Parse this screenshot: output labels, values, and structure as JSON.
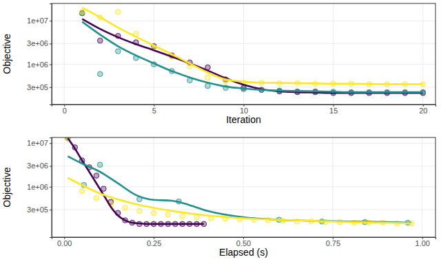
{
  "chart_data": [
    {
      "type": "line",
      "x_label": "Iteration",
      "y_label": "Objective",
      "log": "y",
      "grid": true,
      "xlim": [
        -0.7,
        20.7
      ],
      "xticks": [
        0,
        5,
        10,
        15,
        20
      ],
      "ylim": [
        120000,
        25000000
      ],
      "yticks": [
        {
          "value": 300000,
          "label": "3e+05"
        },
        {
          "value": 1000000,
          "label": "1e+06"
        },
        {
          "value": 3000000,
          "label": "3e+06"
        },
        {
          "value": 10000000,
          "label": "1e+07"
        }
      ],
      "series": [
        {
          "type": "scatter",
          "marker": "circle",
          "color": "#440154",
          "x": [
            1,
            2,
            3,
            4,
            5,
            6,
            7,
            8,
            9,
            10,
            11,
            12,
            13,
            14,
            15,
            16,
            17,
            18,
            19,
            20
          ],
          "values": [
            15000000.0,
            3500000.0,
            4500000.0,
            3200000.0,
            2600000.0,
            1600000.0,
            1100000.0,
            850000.0,
            450000.0,
            290000.0,
            260000.0,
            240000.0,
            230000.0,
            230000.0,
            220000.0,
            220000.0,
            220000.0,
            220000.0,
            220000.0,
            220000.0
          ]
        },
        {
          "type": "scatter",
          "marker": "circle",
          "color": "#21908C",
          "x": [
            1,
            2,
            3,
            4,
            5,
            6,
            7,
            8,
            9,
            10,
            11,
            12,
            13,
            14,
            15,
            16,
            17,
            18,
            19,
            20
          ],
          "values": [
            15000000.0,
            600000.0,
            2000000.0,
            1400000.0,
            1000000.0,
            700000.0,
            430000.0,
            320000.0,
            290000.0,
            270000.0,
            260000.0,
            250000.0,
            240000.0,
            240000.0,
            235000.0,
            230000.0,
            230000.0,
            230000.0,
            230000.0,
            230000.0
          ]
        },
        {
          "type": "scatter",
          "marker": "circle",
          "color": "#FDE725",
          "x": [
            1,
            2,
            3,
            4,
            5,
            6,
            7,
            8,
            9,
            10,
            11,
            12,
            13,
            14,
            15,
            16,
            17,
            18,
            19,
            20
          ],
          "values": [
            16000000.0,
            12000000.0,
            16000000.0,
            5000000.0,
            2400000.0,
            1500000.0,
            900000.0,
            500000.0,
            400000.0,
            380000.0,
            380000.0,
            370000.0,
            370000.0,
            360000.0,
            360000.0,
            360000.0,
            350000.0,
            350000.0,
            350000.0,
            350000.0
          ]
        },
        {
          "type": "line",
          "line_style": "solid",
          "color": "#440154",
          "x": [
            1,
            2,
            3,
            4,
            5,
            6,
            7,
            8,
            9,
            10,
            11,
            12,
            13,
            14,
            15,
            16,
            17,
            18,
            19,
            20
          ],
          "values": [
            11000000.0,
            6500000.0,
            4200000.0,
            2900000.0,
            2100000.0,
            1500000.0,
            1050000.0,
            720000.0,
            480000.0,
            340000.0,
            270000.0,
            240000.0,
            230000.0,
            225000.0,
            220000.0,
            220000.0,
            220000.0,
            220000.0,
            220000.0,
            220000.0
          ]
        },
        {
          "type": "line",
          "line_style": "solid",
          "color": "#21908C",
          "x": [
            1,
            2,
            3,
            4,
            5,
            6,
            7,
            8,
            9,
            10,
            11,
            12,
            13,
            14,
            15,
            16,
            17,
            18,
            19,
            20
          ],
          "values": [
            9500000.0,
            4800000.0,
            2600000.0,
            1600000.0,
            1050000.0,
            700000.0,
            500000.0,
            380000.0,
            310000.0,
            280000.0,
            260000.0,
            250000.0,
            245000.0,
            240000.0,
            235000.0,
            230000.0,
            230000.0,
            230000.0,
            230000.0,
            230000.0
          ]
        },
        {
          "type": "line",
          "line_style": "solid",
          "color": "#FDE725",
          "x": [
            1,
            2,
            3,
            4,
            5,
            6,
            7,
            8,
            9,
            10,
            11,
            12,
            13,
            14,
            15,
            16,
            17,
            18,
            19,
            20
          ],
          "values": [
            20000000.0,
            12000000.0,
            7000000.0,
            4300000.0,
            2700000.0,
            1700000.0,
            1050000.0,
            650000.0,
            450000.0,
            400000.0,
            380000.0,
            375000.0,
            370000.0,
            365000.0,
            360000.0,
            360000.0,
            355000.0,
            350000.0,
            350000.0,
            350000.0
          ]
        }
      ]
    },
    {
      "type": "line",
      "x_label": "Elapsed (s)",
      "y_label": "Objective",
      "log": "y",
      "grid": true,
      "xlim": [
        -0.035,
        1.037
      ],
      "xticks": [
        {
          "value": 0,
          "label": "0.00"
        },
        0.25,
        {
          "value": 0.5,
          "label": "0.50"
        },
        0.75,
        {
          "value": 1,
          "label": "1.00"
        }
      ],
      "ylim": [
        70000,
        13500000
      ],
      "yticks": [
        {
          "value": 300000,
          "label": "3e+05"
        },
        {
          "value": 1000000,
          "label": "1e+06"
        },
        {
          "value": 3000000,
          "label": "3e+06"
        },
        {
          "value": 10000000,
          "label": "1e+07"
        }
      ],
      "series": [
        {
          "type": "scatter",
          "marker": "circle",
          "color": "#440154",
          "x": [
            0.01,
            0.03,
            0.05,
            0.07,
            0.09,
            0.11,
            0.13,
            0.15,
            0.17,
            0.19,
            0.21,
            0.23,
            0.25,
            0.27,
            0.29,
            0.31,
            0.33,
            0.35,
            0.37,
            0.39
          ],
          "values": [
            13000000.0,
            8000000.0,
            4000000.0,
            2800000.0,
            1800000.0,
            900000.0,
            450000.0,
            250000.0,
            170000.0,
            150000.0,
            140000.0,
            140000.0,
            140000.0,
            140000.0,
            140000.0,
            140000.0,
            140000.0,
            140000.0,
            140000.0,
            140000.0
          ]
        },
        {
          "type": "scatter",
          "marker": "circle",
          "color": "#21908C",
          "x": [
            0.01,
            0.055,
            0.1,
            0.21,
            0.32,
            0.6,
            0.72,
            0.84,
            0.96
          ],
          "values": [
            13000000.0,
            1100000.0,
            3200000.0,
            520000.0,
            460000.0,
            175000.0,
            160000.0,
            155000.0,
            150000.0
          ]
        },
        {
          "type": "scatter",
          "marker": "circle",
          "color": "#FDE725",
          "x": [
            0.01,
            0.05,
            0.09,
            0.13,
            0.17,
            0.21,
            0.25,
            0.29,
            0.33,
            0.37,
            0.41,
            0.45,
            0.49,
            0.53,
            0.57,
            0.61,
            0.65,
            0.69,
            0.73,
            0.77,
            0.81,
            0.85,
            0.89,
            0.93,
            0.97
          ],
          "values": [
            13000000.0,
            800000.0,
            550000.0,
            400000.0,
            330000.0,
            280000.0,
            250000.0,
            230000.0,
            210000.0,
            200000.0,
            190000.0,
            185000.0,
            180000.0,
            175000.0,
            170000.0,
            165000.0,
            160000.0,
            160000.0,
            155000.0,
            155000.0,
            150000.0,
            150000.0,
            150000.0,
            145000.0,
            145000.0
          ]
        },
        {
          "type": "line",
          "line_style": "solid",
          "color": "#440154",
          "x": [
            0.01,
            0.03,
            0.05,
            0.07,
            0.09,
            0.11,
            0.13,
            0.15,
            0.17,
            0.19,
            0.21,
            0.23,
            0.25,
            0.27,
            0.29,
            0.31,
            0.33,
            0.35,
            0.37,
            0.39
          ],
          "values": [
            13000000.0,
            7500000.0,
            4000000.0,
            2200000.0,
            1200000.0,
            650000.0,
            350000.0,
            220000.0,
            170000.0,
            150000.0,
            145000.0,
            140000.0,
            140000.0,
            140000.0,
            140000.0,
            140000.0,
            140000.0,
            140000.0,
            140000.0,
            140000.0
          ]
        },
        {
          "type": "line",
          "line_style": "solid",
          "color": "#21908C",
          "x": [
            0.01,
            0.05,
            0.1,
            0.15,
            0.2,
            0.25,
            0.3,
            0.35,
            0.4,
            0.5,
            0.6,
            0.7,
            0.8,
            0.9,
            0.97
          ],
          "values": [
            5000000.0,
            3400000.0,
            2200000.0,
            1200000.0,
            650000.0,
            500000.0,
            480000.0,
            380000.0,
            280000.0,
            200000.0,
            175000.0,
            165000.0,
            160000.0,
            155000.0,
            150000.0
          ]
        },
        {
          "type": "line",
          "line_style": "solid",
          "color": "#FDE725",
          "x": [
            0.01,
            0.1,
            0.2,
            0.3,
            0.4,
            0.5,
            0.6,
            0.7,
            0.8,
            0.9,
            0.97
          ],
          "values": [
            1600000.0,
            700000.0,
            400000.0,
            280000.0,
            220000.0,
            190000.0,
            175000.0,
            165000.0,
            155000.0,
            150000.0,
            145000.0
          ]
        }
      ]
    }
  ]
}
